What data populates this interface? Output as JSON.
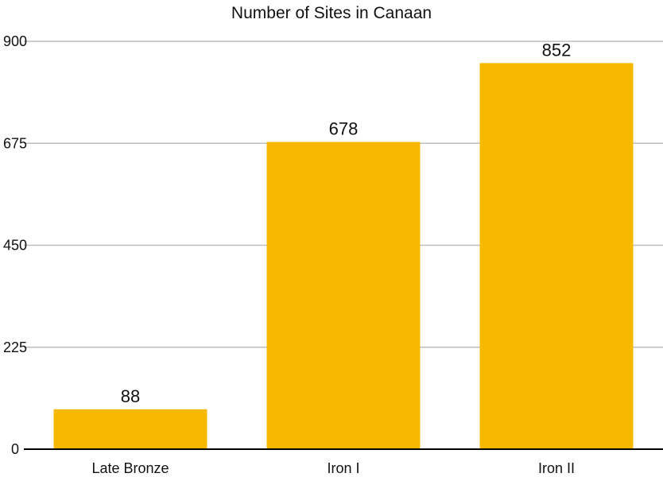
{
  "chart_data": {
    "type": "bar",
    "title": "Number of Sites in Canaan",
    "categories": [
      "Late Bronze",
      "Iron I",
      "Iron II"
    ],
    "values": [
      88,
      678,
      852
    ],
    "data_labels": [
      "88",
      "678",
      "852"
    ],
    "ylim": [
      0,
      900
    ],
    "yticks": [
      0,
      225,
      450,
      675,
      900
    ],
    "ytick_labels": [
      "0",
      "225",
      "450",
      "675",
      "900"
    ],
    "xlabel": "",
    "ylabel": "",
    "grid": true,
    "legend": "none",
    "colors": {
      "bar": "#F6B800",
      "grid": "#bdbdbd",
      "axis": "#000000",
      "text": "#111111"
    }
  }
}
